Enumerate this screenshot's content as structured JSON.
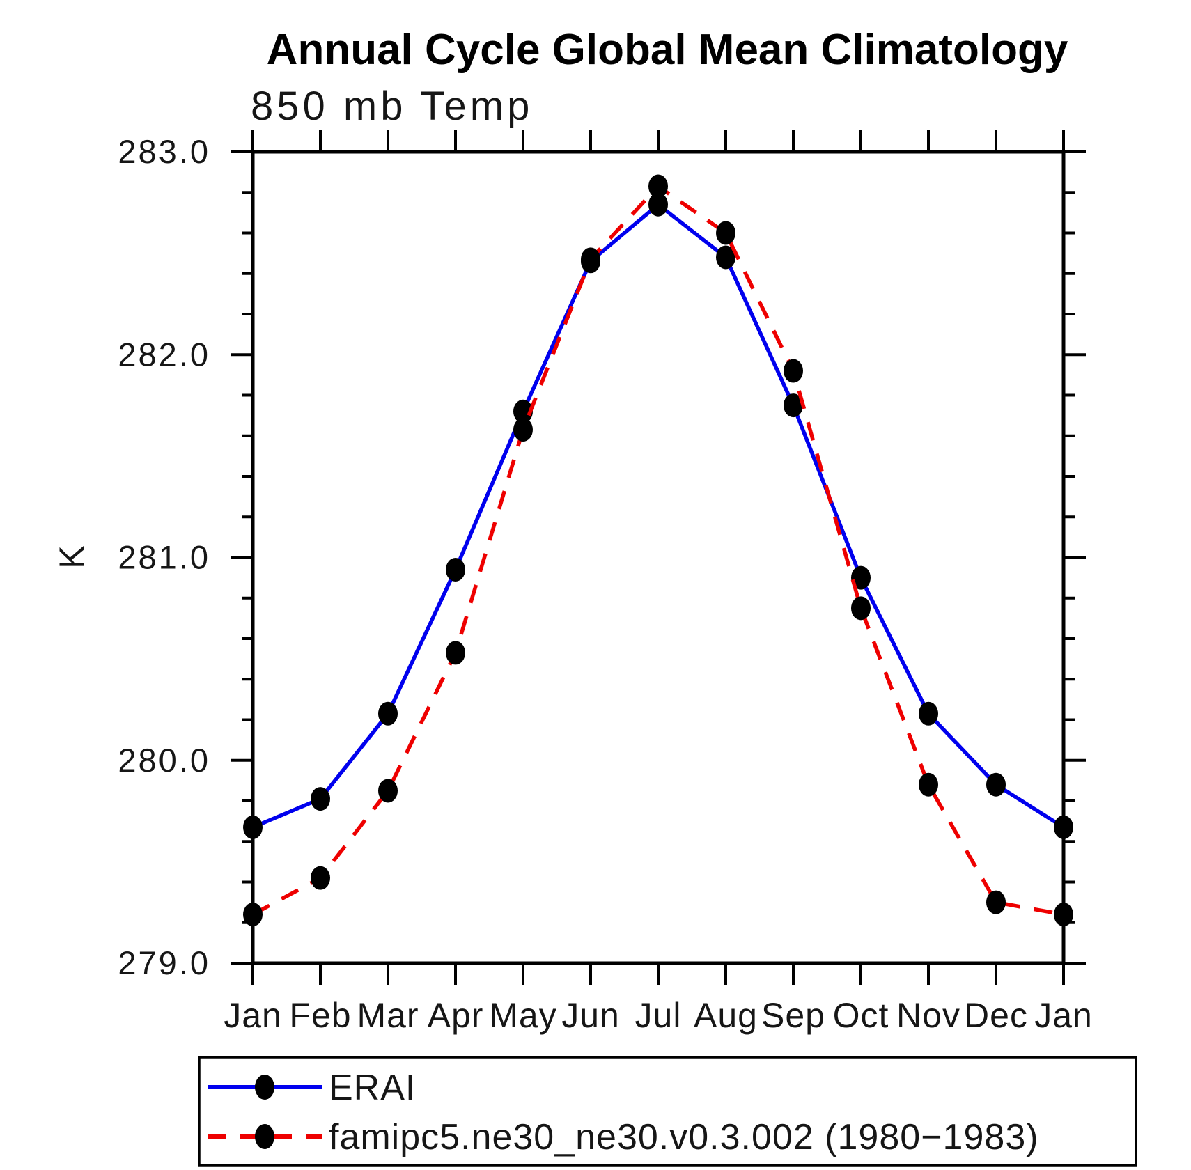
{
  "title": "Annual Cycle Global Mean Climatology",
  "subtitle": "850 mb Temp",
  "y_axis_label": "K",
  "legend_items": [
    {
      "label": "ERAI",
      "color": "#0000ee",
      "style": "solid"
    },
    {
      "label": "famipc5.ne30_ne30.v0.3.002 (1980−1983)",
      "color": "#ee0000",
      "style": "dashed"
    }
  ],
  "chart_data": {
    "type": "line",
    "title": "Annual Cycle Global Mean Climatology",
    "subtitle": "850 mb Temp",
    "ylabel": "K",
    "categories": [
      "Jan",
      "Feb",
      "Mar",
      "Apr",
      "May",
      "Jun",
      "Jul",
      "Aug",
      "Sep",
      "Oct",
      "Nov",
      "Dec",
      "Jan"
    ],
    "series": [
      {
        "name": "ERAI",
        "color": "#0000ee",
        "style": "solid",
        "values": [
          279.67,
          279.81,
          280.23,
          280.94,
          281.72,
          282.46,
          282.74,
          282.48,
          281.75,
          280.9,
          280.23,
          279.88,
          279.67
        ]
      },
      {
        "name": "famipc5.ne30_ne30.v0.3.002 (1980−1983)",
        "color": "#ee0000",
        "style": "dashed",
        "values": [
          279.24,
          279.42,
          279.85,
          280.53,
          281.63,
          282.47,
          282.83,
          282.6,
          281.92,
          280.75,
          279.88,
          279.3,
          279.24
        ]
      }
    ],
    "ylim": [
      279.0,
      283.0
    ],
    "ytick_major_step": 1.0,
    "ytick_minor_step": 0.2,
    "ytick_label_format": "one_decimal",
    "marker": "filled-circle",
    "marker_color": "#000000",
    "grid": "off",
    "legend_position": "below"
  }
}
